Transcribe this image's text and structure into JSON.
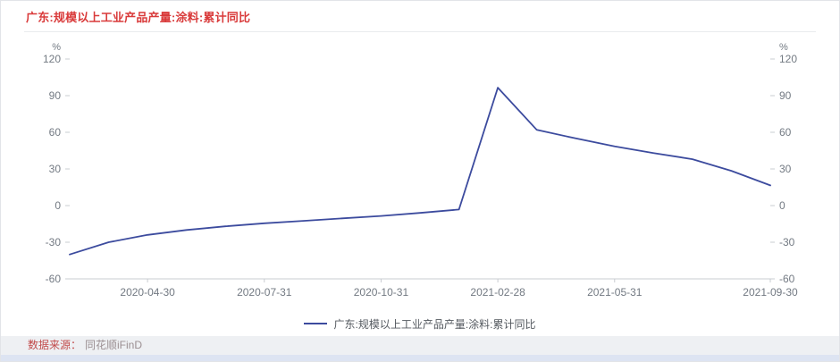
{
  "header": {
    "title": "广东:规模以上工业产品产量:涂料:累计同比"
  },
  "legend": {
    "label": "广东:规模以上工业产品产量:涂料:累计同比"
  },
  "footer": {
    "source_label": "数据来源：",
    "source_value": "同花顺iFinD"
  },
  "colors": {
    "title_red": "#d93a3a",
    "line_blue": "#3c4b9e",
    "axis_text": "#737a83",
    "axis_tick": "#c9ccd1"
  },
  "chart_data": {
    "type": "line",
    "title": "广东:规模以上工业产品产量:涂料:累计同比",
    "unit": "%",
    "ylim": [
      -60,
      120
    ],
    "yticks": [
      -60,
      -30,
      0,
      30,
      60,
      90,
      120
    ],
    "grid": false,
    "legend_position": "bottom",
    "line_color": "#3c4b9e",
    "x": [
      "2020-02-29",
      "2020-03-31",
      "2020-04-30",
      "2020-05-31",
      "2020-06-30",
      "2020-07-31",
      "2020-08-31",
      "2020-09-30",
      "2020-10-31",
      "2020-11-30",
      "2020-12-31",
      "2021-02-28",
      "2021-03-31",
      "2021-04-30",
      "2021-05-31",
      "2021-06-30",
      "2021-07-31",
      "2021-08-31",
      "2021-09-30"
    ],
    "series": [
      {
        "name": "广东:规模以上工业产品产量:涂料:累计同比",
        "values": [
          -40,
          -30,
          -24,
          -20,
          -17,
          -14.5,
          -12.5,
          -10.5,
          -8.5,
          -6,
          -3.2,
          96.5,
          62,
          55,
          48.5,
          43,
          38,
          28.5,
          16.5
        ]
      }
    ],
    "xticks": [
      {
        "index": 2,
        "label": "2020-04-30"
      },
      {
        "index": 5,
        "label": "2020-07-31"
      },
      {
        "index": 8,
        "label": "2020-10-31"
      },
      {
        "index": 11,
        "label": "2021-02-28"
      },
      {
        "index": 14,
        "label": "2021-05-31"
      },
      {
        "index": 18,
        "label": "2021-09-30"
      }
    ]
  }
}
